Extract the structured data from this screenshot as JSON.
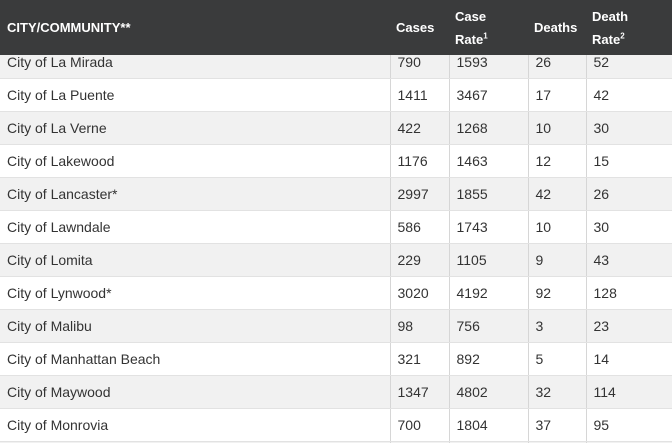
{
  "header": {
    "city": "CITY/COMMUNITY**",
    "cases": "Cases",
    "case_rate_line1": "Case",
    "case_rate_line2": "Rate",
    "case_rate_sup": "1",
    "deaths": "Deaths",
    "death_rate_line1": "Death",
    "death_rate_line2": "Rate",
    "death_rate_sup": "2"
  },
  "rows": [
    {
      "city": "City of La Mirada",
      "cases": "790",
      "case_rate": "1593",
      "deaths": "26",
      "death_rate": "52"
    },
    {
      "city": "City of La Puente",
      "cases": "1411",
      "case_rate": "3467",
      "deaths": "17",
      "death_rate": "42"
    },
    {
      "city": "City of La Verne",
      "cases": "422",
      "case_rate": "1268",
      "deaths": "10",
      "death_rate": "30"
    },
    {
      "city": "City of Lakewood",
      "cases": "1176",
      "case_rate": "1463",
      "deaths": "12",
      "death_rate": "15"
    },
    {
      "city": "City of Lancaster*",
      "cases": "2997",
      "case_rate": "1855",
      "deaths": "42",
      "death_rate": "26"
    },
    {
      "city": "City of Lawndale",
      "cases": "586",
      "case_rate": "1743",
      "deaths": "10",
      "death_rate": "30"
    },
    {
      "city": "City of Lomita",
      "cases": "229",
      "case_rate": "1105",
      "deaths": "9",
      "death_rate": "43"
    },
    {
      "city": "City of Lynwood*",
      "cases": "3020",
      "case_rate": "4192",
      "deaths": "92",
      "death_rate": "128"
    },
    {
      "city": "City of Malibu",
      "cases": "98",
      "case_rate": "756",
      "deaths": "3",
      "death_rate": "23"
    },
    {
      "city": "City of Manhattan Beach",
      "cases": "321",
      "case_rate": "892",
      "deaths": "5",
      "death_rate": "14"
    },
    {
      "city": "City of Maywood",
      "cases": "1347",
      "case_rate": "4802",
      "deaths": "32",
      "death_rate": "114"
    },
    {
      "city": "City of Monrovia",
      "cases": "700",
      "case_rate": "1804",
      "deaths": "37",
      "death_rate": "95"
    }
  ]
}
